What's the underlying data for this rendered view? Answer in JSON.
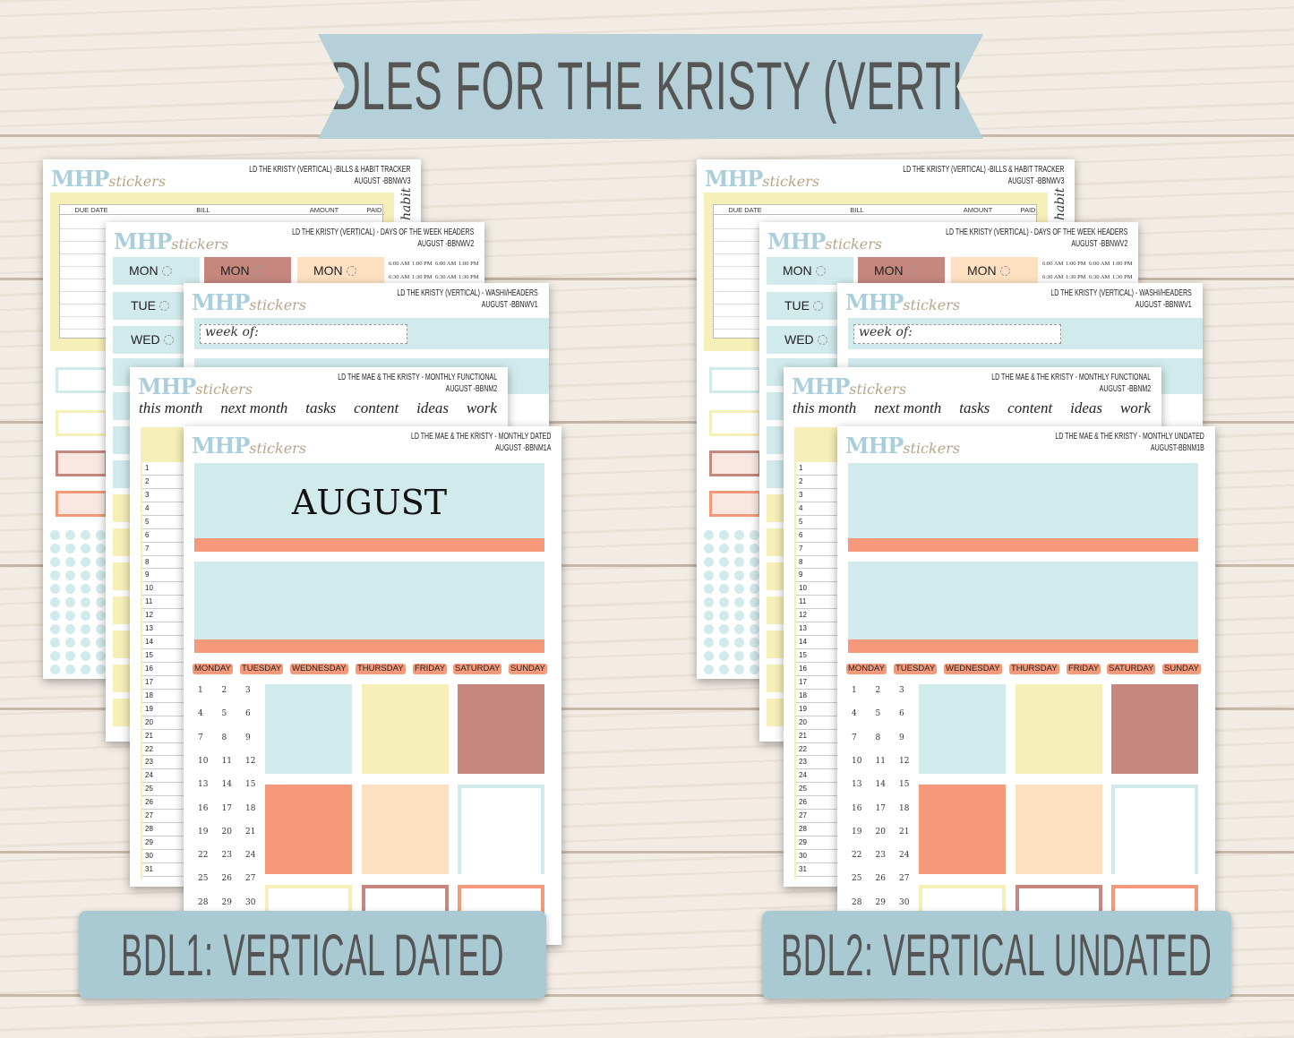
{
  "banner": {
    "title": "BUNDLES FOR THE KRISTY (VERTICAL)"
  },
  "brand": {
    "mhp": "MHP",
    "stickers": "stickers"
  },
  "colors": {
    "blue": "#d1eaec",
    "yellow": "#f7efb8",
    "rose": "#c5877e",
    "orange": "#f49a7a",
    "peach": "#fde0c2",
    "label_bg": "#a9c9d3",
    "banner_bg": "#b5d0d8"
  },
  "shared": {
    "bill_headers": [
      "DUE DATE",
      "BILL",
      "AMOUNT",
      "PAID"
    ],
    "habit_label": "habit",
    "days": [
      "MON",
      "TUE",
      "WED"
    ],
    "times": [
      "6:00 AM",
      "1:00 PM",
      "6:00 AM",
      "1:00 PM",
      "6:30 AM",
      "1:30 PM",
      "6:30 AM",
      "1:30 PM"
    ],
    "week_of": "week of:",
    "functional_words": [
      "this month",
      "next month",
      "tasks",
      "content",
      "ideas",
      "work"
    ],
    "weekday_headers": [
      "MONDAY",
      "TUESDAY",
      "WEDNESDAY",
      "THURSDAY",
      "FRIDAY",
      "SATURDAY",
      "SUNDAY"
    ],
    "line_numbers": [
      1,
      2,
      3,
      4,
      5,
      6,
      7,
      8,
      9,
      10,
      11,
      12,
      13,
      14,
      15,
      16,
      17,
      18,
      19,
      20,
      21,
      22,
      23,
      24,
      25,
      26,
      27,
      28,
      29,
      30,
      31
    ],
    "date_numbers": [
      1,
      2,
      3,
      4,
      5,
      6,
      7,
      8,
      9,
      10,
      11,
      12,
      13,
      14,
      15,
      16,
      17,
      18,
      19,
      20,
      21,
      22,
      23,
      24,
      25,
      26,
      27,
      28,
      29,
      30
    ]
  },
  "bundles": [
    {
      "label": "BDL1: VERTICAL DATED",
      "bills": {
        "title": "LD THE KRISTY (VERTICAL) -BILLS & HABIT TRACKER",
        "code": "AUGUST -BBNWV3"
      },
      "days": {
        "title": "LD THE KRISTY (VERTICAL) - DAYS OF THE WEEK HEADERS",
        "code": "AUGUST -BBNWV2"
      },
      "washi": {
        "title": "LD THE KRISTY (VERTICAL) - WASHI/HEADERS",
        "code": "AUGUST -BBNWV1"
      },
      "functional": {
        "title": "LD THE MAE & THE KRISTY - MONTHLY FUNCTIONAL",
        "code": "AUGUST -BBNM2"
      },
      "monthly": {
        "title": "LD THE MAE & THE KRISTY - MONTHLY DATED",
        "code": "AUGUST -BBNM1A",
        "month": "AUGUST"
      }
    },
    {
      "label": "BDL2: VERTICAL UNDATED",
      "bills": {
        "title": "LD THE KRISTY (VERTICAL) -BILLS & HABIT TRACKER",
        "code": "AUGUST -BBNWV3"
      },
      "days": {
        "title": "LD THE KRISTY (VERTICAL) - DAYS OF THE WEEK HEADERS",
        "code": "AUGUST -BBNWV2"
      },
      "washi": {
        "title": "LD THE KRISTY (VERTICAL) - WASHI/HEADERS",
        "code": "AUGUST -BBNWV1"
      },
      "functional": {
        "title": "LD THE MAE & THE KRISTY - MONTHLY FUNCTIONAL",
        "code": "AUGUST -BBNM2"
      },
      "monthly": {
        "title": "LD THE MAE & THE KRISTY - MONTHLY UNDATED",
        "code": "AUGUST-BBNM1B"
      }
    }
  ]
}
